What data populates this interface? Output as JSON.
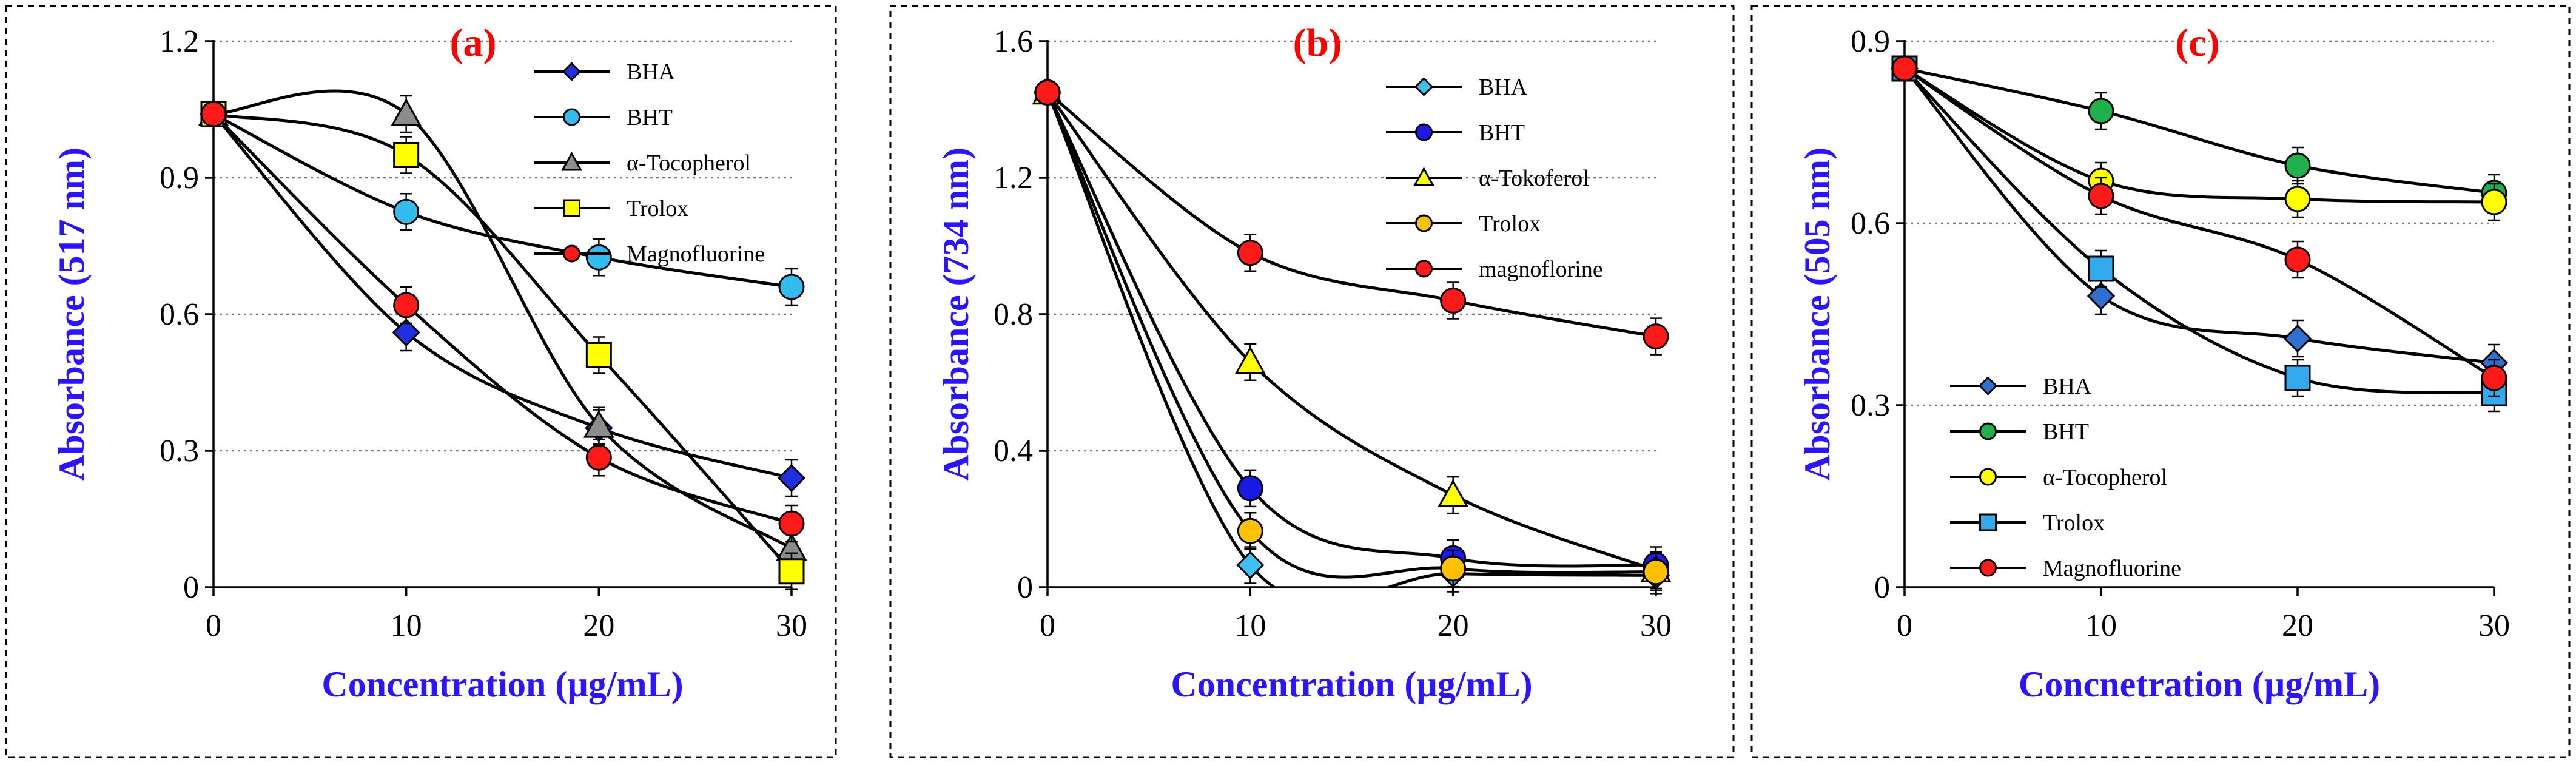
{
  "chart_data": [
    {
      "type": "line",
      "title": "(a)",
      "xlabel": "Concentration (µg/mL)",
      "ylabel": "Absorbance (517 nm)",
      "x": [
        0,
        10,
        20,
        30
      ],
      "x_ticks": [
        "0",
        "10",
        "20",
        "30"
      ],
      "ylim": [
        0,
        1.2
      ],
      "y_ticks": [
        "0",
        "0.3",
        "0.6",
        "0.9",
        "1.2"
      ],
      "y_tick_values": [
        0,
        0.3,
        0.6,
        0.9,
        1.2
      ],
      "grid": true,
      "legend_position": "top-right",
      "series": [
        {
          "name": "BHA",
          "values": [
            1.04,
            0.56,
            0.35,
            0.24
          ],
          "marker": "diamond",
          "color": "#2030e0"
        },
        {
          "name": "BHT",
          "values": [
            1.04,
            0.825,
            0.725,
            0.66
          ],
          "marker": "circle",
          "color": "#33bbee"
        },
        {
          "name": "α-Tocopherol",
          "values": [
            1.04,
            1.04,
            0.355,
            0.085
          ],
          "marker": "triangle",
          "color": "#8c8c8c"
        },
        {
          "name": "Trolox",
          "values": [
            1.04,
            0.95,
            0.51,
            0.035
          ],
          "marker": "square",
          "color": "#ffff00"
        },
        {
          "name": "Magnofluorine",
          "values": [
            1.04,
            0.62,
            0.285,
            0.14
          ],
          "marker": "circle",
          "color": "#ff1a1a"
        }
      ]
    },
    {
      "type": "line",
      "title": "(b)",
      "xlabel": "Concentration (µg/mL)",
      "ylabel": "Absorbance (734 nm)",
      "x": [
        0,
        10,
        20,
        30
      ],
      "x_ticks": [
        "0",
        "10",
        "20",
        "30"
      ],
      "ylim": [
        0,
        1.6
      ],
      "y_ticks": [
        "0",
        "0.4",
        "0.8",
        "1.2",
        "1.6"
      ],
      "y_tick_values": [
        0,
        0.4,
        0.8,
        1.2,
        1.6
      ],
      "grid": true,
      "legend_position": "top-right",
      "series": [
        {
          "name": "BHA",
          "values": [
            1.45,
            0.065,
            0.04,
            0.035
          ],
          "marker": "diamond",
          "color": "#40c0f0"
        },
        {
          "name": "BHT",
          "values": [
            1.45,
            0.29,
            0.085,
            0.065
          ],
          "marker": "circle",
          "color": "#1a1ae6"
        },
        {
          "name": "α-Tokoferol",
          "values": [
            1.45,
            0.66,
            0.27,
            0.05
          ],
          "marker": "triangle",
          "color": "#ffff00"
        },
        {
          "name": "Trolox",
          "values": [
            1.45,
            0.165,
            0.055,
            0.045
          ],
          "marker": "circle",
          "color": "#ffc000"
        },
        {
          "name": "magnoflorine",
          "values": [
            1.45,
            0.98,
            0.84,
            0.735
          ],
          "marker": "circle",
          "color": "#ff1a1a"
        }
      ]
    },
    {
      "type": "line",
      "title": "(c)",
      "xlabel": "Concnetration (µg/mL)",
      "ylabel": "Absorbance (505 nm)",
      "x": [
        0,
        10,
        20,
        30
      ],
      "x_ticks": [
        "0",
        "10",
        "20",
        "30"
      ],
      "ylim": [
        0,
        0.9
      ],
      "y_ticks": [
        "0",
        "0.3",
        "0.6",
        "0.9"
      ],
      "y_tick_values": [
        0,
        0.3,
        0.6,
        0.9
      ],
      "grid": true,
      "legend_position": "bottom-left",
      "series": [
        {
          "name": "BHA",
          "values": [
            0.855,
            0.48,
            0.41,
            0.37
          ],
          "marker": "diamond",
          "color": "#2f6fd0"
        },
        {
          "name": "BHT",
          "values": [
            0.855,
            0.785,
            0.695,
            0.65
          ],
          "marker": "circle",
          "color": "#22b04c"
        },
        {
          "name": "α-Tocopherol",
          "values": [
            0.855,
            0.67,
            0.64,
            0.635
          ],
          "marker": "circle",
          "color": "#ffff00"
        },
        {
          "name": "Trolox",
          "values": [
            0.855,
            0.525,
            0.345,
            0.32
          ],
          "marker": "square",
          "color": "#33aaee"
        },
        {
          "name": "Magnofluorine",
          "values": [
            0.855,
            0.645,
            0.54,
            0.345
          ],
          "marker": "circle",
          "color": "#ff1a1a"
        }
      ]
    }
  ]
}
